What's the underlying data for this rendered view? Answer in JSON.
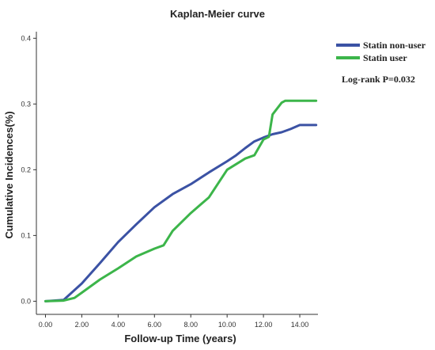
{
  "chart_data": {
    "type": "line",
    "title": "Kaplan-Meier curve",
    "xlabel": "Follow-up Time (years)",
    "ylabel": "Cumulative Incidences(%)",
    "xlim": [
      -0.5,
      15
    ],
    "ylim": [
      -0.02,
      0.41
    ],
    "x_ticks": [
      0,
      2,
      4,
      6,
      8,
      10,
      12,
      14
    ],
    "x_tick_labels": [
      "0.00",
      "2.00",
      "4.00",
      "6.00",
      "8.00",
      "10.00",
      "12.00",
      "14.00"
    ],
    "y_ticks": [
      0,
      0.1,
      0.2,
      0.3,
      0.4
    ],
    "y_tick_labels": [
      "0.0",
      "0.1",
      "0.2",
      "0.3",
      "0.4"
    ],
    "grid": false,
    "legend_position": "top-right",
    "annotation": "Log-rank P=0.032",
    "series": [
      {
        "name": "Statin non-user",
        "color": "#3b52a4",
        "x": [
          0,
          1.0,
          2.0,
          3.0,
          4.0,
          5.0,
          6.0,
          7.0,
          8.0,
          9.0,
          10.0,
          10.5,
          11.0,
          11.5,
          12.0,
          12.5,
          13.0,
          13.5,
          14.0,
          14.9
        ],
        "y": [
          0,
          0.002,
          0.027,
          0.058,
          0.09,
          0.117,
          0.143,
          0.163,
          0.178,
          0.196,
          0.213,
          0.222,
          0.233,
          0.243,
          0.249,
          0.254,
          0.257,
          0.262,
          0.268,
          0.268
        ]
      },
      {
        "name": "Statin user",
        "color": "#3cb54a",
        "x": [
          0,
          1.0,
          1.6,
          2.0,
          3.0,
          4.0,
          5.0,
          6.0,
          6.5,
          7.0,
          8.0,
          9.0,
          10.0,
          11.0,
          11.5,
          12.0,
          12.3,
          12.5,
          13.0,
          13.2,
          14.9
        ],
        "y": [
          0,
          0.001,
          0.005,
          0.013,
          0.033,
          0.05,
          0.068,
          0.08,
          0.085,
          0.107,
          0.134,
          0.158,
          0.2,
          0.217,
          0.222,
          0.246,
          0.25,
          0.284,
          0.302,
          0.305,
          0.305
        ]
      }
    ]
  }
}
